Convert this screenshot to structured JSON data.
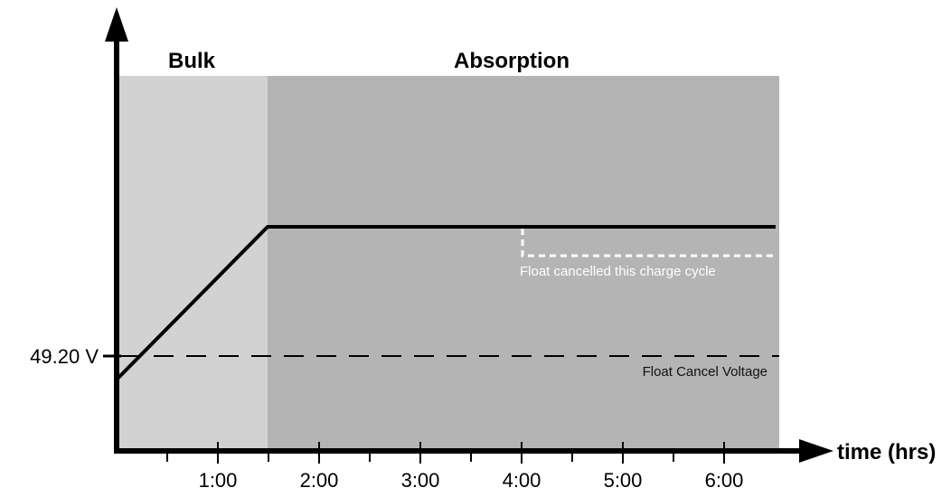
{
  "colors": {
    "bulk_region": "#d3d2d3",
    "absorption_region": "#b4b4b4",
    "axis": "#000000",
    "charge_line": "#000000",
    "float_cancel_line": "#ffffff",
    "annotation_text_on_light": "#ffffff",
    "annotation_text_on_dark": "#111111"
  },
  "phases": {
    "bulk": {
      "label": "Bulk"
    },
    "absorption": {
      "label": "Absorption"
    }
  },
  "axis": {
    "x_title": "time (hrs)",
    "x_tick_labels": [
      "1:00",
      "2:00",
      "3:00",
      "4:00",
      "5:00",
      "6:00"
    ],
    "y_threshold_label": "49.20 V"
  },
  "annotations": {
    "float_cancelled": "Float cancelled this charge cycle",
    "float_cancel_voltage": "Float Cancel Voltage"
  },
  "icons": {
    "y_axis_arrow": "arrow-up-icon",
    "x_axis_arrow": "arrow-right-icon"
  }
}
